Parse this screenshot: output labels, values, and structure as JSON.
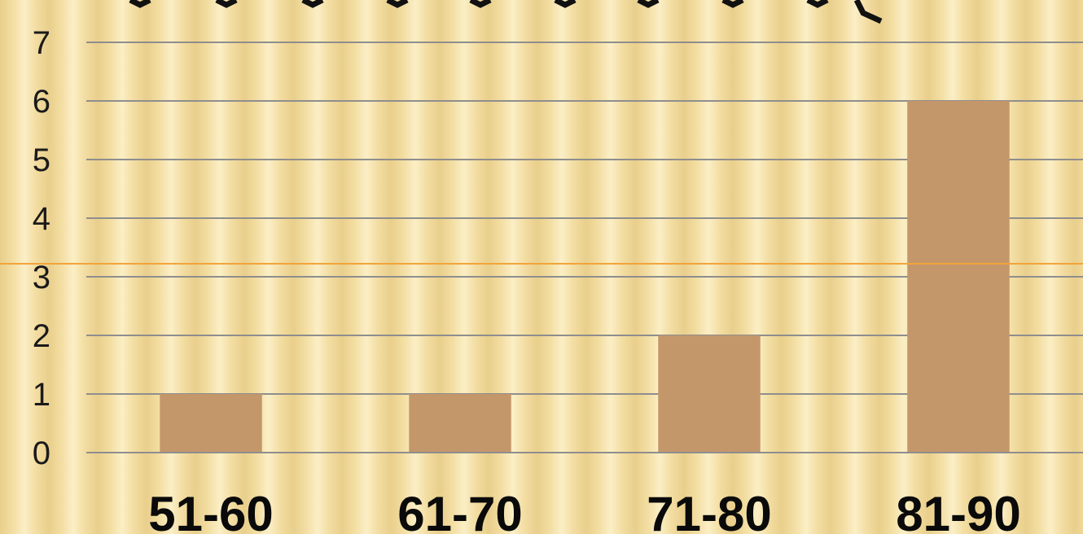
{
  "chart_data": {
    "type": "bar",
    "categories": [
      "51-60",
      "61-70",
      "71-80",
      "81-90"
    ],
    "values": [
      1,
      1,
      2,
      6
    ],
    "ylim": [
      0,
      7
    ],
    "yticks": [
      "0",
      "1",
      "2",
      "3",
      "4",
      "5",
      "6",
      "7"
    ],
    "grid": true,
    "legend": "none",
    "colors": {
      "bar": "#c4976b",
      "gridline": "#8e8e8e",
      "accent_line": "#f2a43a",
      "text": "#111111"
    }
  }
}
